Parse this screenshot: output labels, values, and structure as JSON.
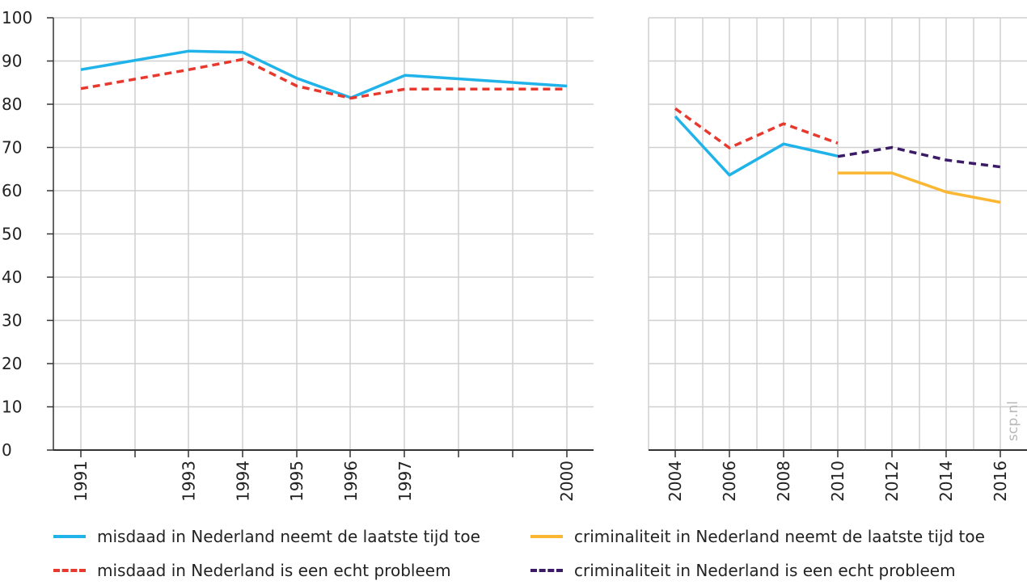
{
  "colors": {
    "blue": "#1fb3ea",
    "red": "#e8392f",
    "yellow": "#fbb731",
    "purple": "#3b1a66",
    "grid": "#d0d0d0",
    "axis": "#333333"
  },
  "watermark": "scp.nl",
  "chart_data": [
    {
      "type": "line",
      "x_ticks": [
        "1991",
        "1993",
        "1994",
        "1995",
        "1996",
        "1997",
        "2000"
      ],
      "ylim": [
        0,
        100
      ],
      "yticks": [
        "0",
        "10",
        "20",
        "30",
        "40",
        "50",
        "60",
        "70",
        "80",
        "90",
        "100"
      ],
      "grid": true,
      "series": [
        {
          "name": "misdaad in Nederland neemt de laatste tijd toe",
          "color": "blue",
          "dashed": false,
          "x": [
            1991,
            1993,
            1994,
            1995,
            1996,
            1997,
            2000
          ],
          "y": [
            88,
            92.3,
            92,
            86,
            81.5,
            86.7,
            84.2
          ]
        },
        {
          "name": "misdaad in Nederland is een echt probleem",
          "color": "red",
          "dashed": true,
          "x": [
            1991,
            1993,
            1994,
            1995,
            1996,
            1997,
            2000
          ],
          "y": [
            83.6,
            88,
            90.4,
            84.2,
            81.4,
            83.5,
            83.5
          ]
        }
      ]
    },
    {
      "type": "line",
      "x_ticks": [
        "2004",
        "2006",
        "2008",
        "2010",
        "2012",
        "2014",
        "2016"
      ],
      "ylim": [
        0,
        100
      ],
      "grid": true,
      "series": [
        {
          "name": "misdaad in Nederland neemt de laatste tijd toe",
          "color": "blue",
          "dashed": false,
          "x": [
            2004,
            2006,
            2008,
            2010
          ],
          "y": [
            77.2,
            63.6,
            70.8,
            68
          ]
        },
        {
          "name": "misdaad in Nederland is een echt probleem",
          "color": "red",
          "dashed": true,
          "x": [
            2004,
            2006,
            2008,
            2010
          ],
          "y": [
            79,
            69.9,
            75.5,
            71
          ]
        },
        {
          "name": "criminaliteit in Nederland neemt de laatste tijd toe",
          "color": "yellow",
          "dashed": false,
          "x": [
            2010,
            2012,
            2014,
            2016
          ],
          "y": [
            64.1,
            64.1,
            59.7,
            57.3
          ]
        },
        {
          "name": "criminaliteit in Nederland is een echt probleem",
          "color": "purple",
          "dashed": true,
          "x": [
            2010,
            2012,
            2014,
            2016
          ],
          "y": [
            67.9,
            70,
            67.1,
            65.5
          ]
        }
      ]
    }
  ],
  "legend": [
    {
      "label": "misdaad in Nederland neemt de laatste tijd toe",
      "color": "blue",
      "dashed": false
    },
    {
      "label": "criminaliteit in Nederland neemt de laatste tijd toe",
      "color": "yellow",
      "dashed": false
    },
    {
      "label": "misdaad in Nederland is een echt probleem",
      "color": "red",
      "dashed": true
    },
    {
      "label": "criminaliteit in Nederland is een echt probleem",
      "color": "purple",
      "dashed": true
    }
  ]
}
